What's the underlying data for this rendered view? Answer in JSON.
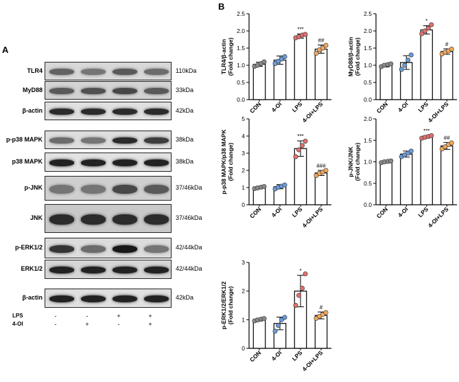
{
  "panel_a": {
    "letter": "A",
    "lane_count": 4,
    "blots": [
      {
        "label": "TLR4",
        "size": "110kDa",
        "intensity": [
          0.55,
          0.45,
          0.6,
          0.5
        ],
        "bg": "#d8d8d8"
      },
      {
        "label": "MyD88",
        "size": "33kDa",
        "intensity": [
          0.6,
          0.65,
          0.7,
          0.6
        ],
        "bg": "#d3d3d3"
      },
      {
        "label": "β-actin",
        "size": "42kDa",
        "intensity": [
          0.85,
          0.85,
          0.85,
          0.85
        ],
        "bg": "#e0e0e0"
      },
      {
        "label": "p-p38 MAPK",
        "size": "38kDa",
        "intensity": [
          0.5,
          0.45,
          0.85,
          0.75
        ],
        "bg": "#dedede"
      },
      {
        "label": "p38 MAPK",
        "size": "38kDa",
        "intensity": [
          0.9,
          0.9,
          0.9,
          0.9
        ],
        "bg": "#e2e2e2"
      },
      {
        "label": "p-JNK",
        "size": "37/46kDa",
        "intensity": [
          0.45,
          0.45,
          0.7,
          0.6
        ],
        "bg": "#cfcfcf"
      },
      {
        "label": "JNK",
        "size": "37/46kDa",
        "intensity": [
          0.85,
          0.85,
          0.85,
          0.85
        ],
        "bg": "#c9c9c9"
      },
      {
        "label": "p-ERK1/2",
        "size": "42/44kDa",
        "intensity": [
          0.8,
          0.5,
          0.95,
          0.45
        ],
        "bg": "#dcdcdc"
      },
      {
        "label": "ERK1/2",
        "size": "42/44kDa",
        "intensity": [
          0.9,
          0.9,
          0.9,
          0.9
        ],
        "bg": "#d6d6d6"
      },
      {
        "label": "β-actin",
        "size": "42kDa",
        "intensity": [
          0.9,
          0.9,
          0.9,
          0.9
        ],
        "bg": "#e0e0e0"
      }
    ],
    "treatments": [
      {
        "label": "LPS",
        "values": [
          "-",
          "-",
          "+",
          "+"
        ]
      },
      {
        "label": "4-OI",
        "values": [
          "-",
          "+",
          "-",
          "+"
        ]
      }
    ]
  },
  "panel_b": {
    "letter": "B"
  },
  "colors": {
    "CON": "#8a8a8a",
    "4-OI": "#6a9bd8",
    "LPS": "#e07070",
    "4-OI+LPS": "#f0a860"
  },
  "chart_data": [
    {
      "type": "bar",
      "ylabel": "TLR4/β-actin\n(Fold change)",
      "categories": [
        "CON",
        "4-OI",
        "LPS",
        "4-OI+LPS"
      ],
      "values": [
        1.03,
        1.15,
        1.85,
        1.47
      ],
      "errors": [
        0.06,
        0.12,
        0.06,
        0.12
      ],
      "points": [
        [
          0.97,
          1.0,
          1.05,
          1.1
        ],
        [
          1.05,
          1.12,
          1.18,
          1.25
        ],
        [
          1.8,
          1.83,
          1.88,
          1.9
        ],
        [
          1.35,
          1.45,
          1.5,
          1.58
        ]
      ],
      "ylim": [
        0,
        2.5
      ],
      "yticks": [
        "0.0",
        "0.5",
        "1.0",
        "1.5",
        "2.0",
        "2.5"
      ],
      "sig": [
        "",
        "",
        "***",
        "##"
      ]
    },
    {
      "type": "bar",
      "ylabel": "MyD88/β-actin\n(Fold change)",
      "categories": [
        "CON",
        "4-OI",
        "LPS",
        "4-OI+LPS"
      ],
      "values": [
        1.0,
        1.08,
        2.03,
        1.4
      ],
      "errors": [
        0.05,
        0.2,
        0.12,
        0.08
      ],
      "points": [
        [
          0.96,
          1.0,
          1.02,
          1.04
        ],
        [
          0.88,
          1.0,
          1.15,
          1.3
        ],
        [
          1.92,
          2.0,
          2.08,
          2.18
        ],
        [
          1.33,
          1.38,
          1.42,
          1.47
        ]
      ],
      "ylim": [
        0,
        2.5
      ],
      "yticks": [
        "0.0",
        "0.5",
        "1.0",
        "1.5",
        "2.0",
        "2.5"
      ],
      "sig": [
        "",
        "",
        "*",
        "#"
      ]
    },
    {
      "type": "bar",
      "ylabel": "p-p38 MAPK/p38 MAPK\n(Fold change)",
      "categories": [
        "CON",
        "4-OI",
        "LPS",
        "4-OI+LPS"
      ],
      "values": [
        1.0,
        1.05,
        3.27,
        1.85
      ],
      "errors": [
        0.06,
        0.12,
        0.45,
        0.15
      ],
      "points": [
        [
          0.94,
          0.98,
          1.02,
          1.06
        ],
        [
          0.92,
          1.02,
          1.08,
          1.15
        ],
        [
          2.8,
          3.2,
          3.45,
          3.7
        ],
        [
          1.7,
          1.82,
          1.9,
          2.0
        ]
      ],
      "ylim": [
        0,
        5
      ],
      "yticks": [
        "0",
        "1",
        "2",
        "3",
        "4",
        "5"
      ],
      "sig": [
        "",
        "",
        "***",
        "###"
      ]
    },
    {
      "type": "bar",
      "ylabel": "p-JNK/JNK\n(Fold change)",
      "categories": [
        "CON",
        "4-OI",
        "LPS",
        "4-OI+LPS"
      ],
      "values": [
        1.0,
        1.18,
        1.58,
        1.37
      ],
      "errors": [
        0.03,
        0.07,
        0.03,
        0.08
      ],
      "points": [
        [
          0.98,
          1.0,
          1.01,
          1.02
        ],
        [
          1.12,
          1.16,
          1.2,
          1.25
        ],
        [
          1.55,
          1.57,
          1.59,
          1.61
        ],
        [
          1.3,
          1.35,
          1.4,
          1.44
        ]
      ],
      "ylim": [
        0,
        2.0
      ],
      "yticks": [
        "0.0",
        "0.5",
        "1.0",
        "1.5",
        "2.0"
      ],
      "sig": [
        "",
        "",
        "***",
        "##"
      ]
    },
    {
      "type": "bar",
      "ylabel": "p-ERK1/2/ERK1/2\n(Fold change)",
      "categories": [
        "CON",
        "4-OI",
        "LPS",
        "4-OI+LPS"
      ],
      "values": [
        1.0,
        0.87,
        2.0,
        1.15
      ],
      "errors": [
        0.05,
        0.22,
        0.55,
        0.12
      ],
      "points": [
        [
          0.96,
          0.99,
          1.02,
          1.04
        ],
        [
          0.6,
          0.8,
          1.0,
          1.08
        ],
        [
          1.5,
          1.85,
          2.1,
          2.6
        ],
        [
          1.05,
          1.12,
          1.18,
          1.25
        ]
      ],
      "ylim": [
        0,
        3
      ],
      "yticks": [
        "0",
        "1",
        "2",
        "3"
      ],
      "sig": [
        "",
        "",
        "*",
        "#"
      ]
    }
  ]
}
